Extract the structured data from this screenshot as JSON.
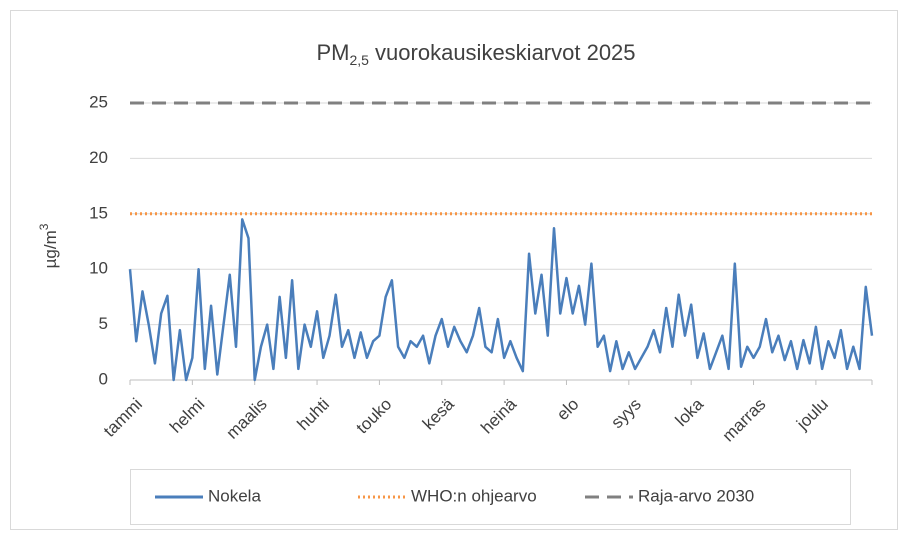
{
  "chart_data": {
    "type": "line",
    "title": "PM",
    "title_sub": "2,5",
    "title_rest": " vuorokausikeskiarvot 2025",
    "ylabel": "µg/m",
    "ylabel_sup": "3",
    "categories": [
      "tammi",
      null,
      null,
      null,
      null,
      null,
      null,
      null,
      null,
      null,
      "helmi",
      null,
      null,
      null,
      null,
      null,
      null,
      null,
      null,
      null,
      "maalis",
      null,
      null,
      null,
      null,
      null,
      null,
      null,
      null,
      null,
      "huhti",
      null,
      null,
      null,
      null,
      null,
      null,
      null,
      null,
      null,
      "touko",
      null,
      null,
      null,
      null,
      null,
      null,
      null,
      null,
      null,
      "kesä",
      null,
      null,
      null,
      null,
      null,
      null,
      null,
      null,
      null,
      "heinä",
      null,
      null,
      null,
      null,
      null,
      null,
      null,
      null,
      null,
      "elo",
      null,
      null,
      null,
      null,
      null,
      null,
      null,
      null,
      null,
      "syys",
      null,
      null,
      null,
      null,
      null,
      null,
      null,
      null,
      null,
      "loka",
      null,
      null,
      null,
      null,
      null,
      null,
      null,
      null,
      null,
      "marras",
      null,
      null,
      null,
      null,
      null,
      null,
      null,
      null,
      null,
      "joulu",
      null,
      null,
      null,
      null,
      null,
      null,
      null,
      null,
      null
    ],
    "series": [
      {
        "name": "Nokela",
        "color": "#4a7ebb",
        "values": [
          10,
          3.5,
          8,
          5,
          1.5,
          6,
          7.6,
          0,
          4.5,
          0,
          2,
          10,
          1,
          6.7,
          0.5,
          5,
          9.5,
          3,
          14.5,
          12.8,
          0,
          3,
          5,
          1,
          7.5,
          2,
          9,
          1,
          5,
          3,
          6.2,
          2,
          4,
          7.7,
          3,
          4.5,
          2,
          4.3,
          2,
          3.5,
          4,
          7.5,
          9,
          3,
          2,
          3.5,
          3,
          4,
          1.5,
          4,
          5.5,
          3,
          4.8,
          3.5,
          2.5,
          4,
          6.5,
          3,
          2.5,
          5.5,
          2,
          3.5,
          2,
          0.8,
          11.4,
          6,
          9.5,
          4,
          13.7,
          6,
          9.2,
          6,
          8.5,
          5,
          10.5,
          3,
          4,
          0.8,
          3.5,
          1,
          2.5,
          1,
          2,
          3,
          4.5,
          2.5,
          6.5,
          3,
          7.7,
          4,
          6.8,
          2,
          4.2,
          1,
          2.5,
          4,
          1,
          10.5,
          1.2,
          3,
          2,
          3,
          5.5,
          2.5,
          4,
          1.8,
          3.5,
          1,
          3.6,
          1.5,
          4.8,
          1,
          3.5,
          2,
          4.5,
          1,
          3,
          1,
          8.4,
          4
        ]
      }
    ],
    "hlines": [
      {
        "name": "WHO:n ohjearvo",
        "value": 15,
        "color": "#f79646",
        "style": "dotted"
      },
      {
        "name": "Raja-arvo 2030",
        "value": 25,
        "color": "#808080",
        "style": "dashed"
      }
    ],
    "ylim": [
      0,
      25
    ],
    "yticks": [
      0,
      5,
      10,
      15,
      20,
      25
    ],
    "grid": true,
    "legend": "bottom"
  }
}
